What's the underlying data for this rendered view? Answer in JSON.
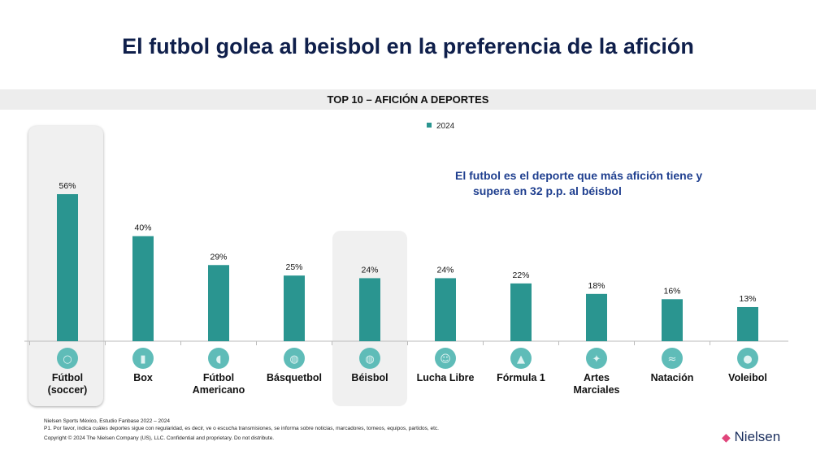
{
  "title": "El futbol golea al beisbol en la preferencia de la afición",
  "chart_data": {
    "type": "bar",
    "title": "TOP 10 – AFICIÓN A DEPORTES",
    "categories": [
      "Fútbol (soccer)",
      "Box",
      "Fútbol Americano",
      "Básquetbol",
      "Béisbol",
      "Lucha Libre",
      "Fórmula 1",
      "Artes Marciales",
      "Natación",
      "Voleibol"
    ],
    "series": [
      {
        "name": "2024",
        "values": [
          56,
          40,
          29,
          25,
          24,
          24,
          22,
          18,
          16,
          13
        ],
        "color": "#2a9590"
      }
    ],
    "data_labels": [
      "56%",
      "40%",
      "29%",
      "25%",
      "24%",
      "24%",
      "22%",
      "18%",
      "16%",
      "13%"
    ],
    "highlighted": [
      "Fútbol (soccer)",
      "Béisbol"
    ],
    "legend_position": "top",
    "grid": false,
    "ylim": [
      0,
      60
    ]
  },
  "icons": [
    "soccer-ball-icon",
    "boxing-glove-icon",
    "american-football-icon",
    "basketball-icon",
    "baseball-icon",
    "wrestling-mask-icon",
    "formula-1-car-icon",
    "martial-arts-icon",
    "swimming-icon",
    "volleyball-icon"
  ],
  "annotation": [
    "El futbol es el deporte que más afición tiene y",
    "supera en 32 p.p. al béisbol"
  ],
  "footer": {
    "source": "Nielsen Sports México, Estudio Fanbase 2022 – 2024",
    "question": "P1. Por favor, indica cuáles deportes sigue con regularidad, es decir, ve o escucha transmisiones, se informa sobre noticias, marcadores, torneos, equipos, partidos, etc.",
    "copyright": "Copyright ©  2024 The Nielsen Company (US), LLC. Confidential and proprietary. Do not distribute.",
    "logo": "Nielsen"
  }
}
